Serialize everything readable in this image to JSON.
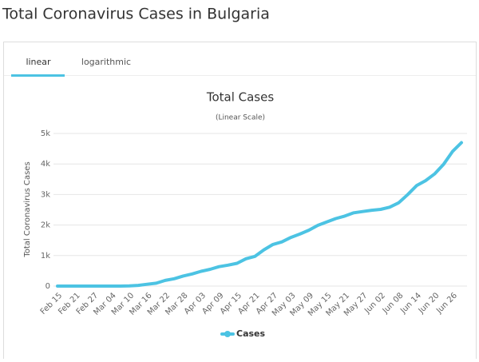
{
  "page_title": "Total Coronavirus Cases in Bulgaria",
  "tabs": [
    "linear",
    "logarithmic"
  ],
  "chart_data": {
    "type": "line",
    "title": "Total Cases",
    "subtitle": "(Linear Scale)",
    "y_label": "Total Coronavirus Cases",
    "categories": [
      "Feb 15",
      null,
      "Feb 21",
      null,
      "Feb 27",
      null,
      "Mar 04",
      null,
      "Mar 10",
      null,
      "Mar 16",
      null,
      "Mar 22",
      null,
      "Mar 28",
      null,
      "Apr 03",
      null,
      "Apr 09",
      null,
      "Apr 15",
      null,
      "Apr 21",
      null,
      "Apr 27",
      null,
      "May 03",
      null,
      "May 09",
      null,
      "May 15",
      null,
      "May 21",
      null,
      "May 27",
      null,
      "Jun 02",
      null,
      "Jun 08",
      null,
      "Jun 14",
      null,
      "Jun 20",
      null,
      "Jun 26",
      null
    ],
    "series": [
      {
        "name": "Cases",
        "color": "#4cc3e3",
        "values": [
          0,
          0,
          0,
          0,
          0,
          0,
          0,
          0,
          6,
          23,
          60,
          94,
          187,
          242,
          331,
          399,
          485,
          549,
          635,
          685,
          747,
          894,
          975,
          1188,
          1363,
          1447,
          1594,
          1704,
          1829,
          1990,
          2100,
          2211,
          2292,
          2400,
          2443,
          2485,
          2513,
          2585,
          2727,
          2993,
          3290,
          3453,
          3674,
          3984,
          4408,
          4700
        ]
      }
    ],
    "ylim": [
      0,
      5000
    ],
    "yticks": [
      0,
      {
        "value": 1000,
        "label": "1k"
      },
      {
        "value": 2000,
        "label": "2k"
      },
      {
        "value": 3000,
        "label": "3k"
      },
      {
        "value": 4000,
        "label": "4k"
      },
      {
        "value": 5000,
        "label": "5k"
      }
    ],
    "grid": true,
    "legend": "bottom"
  }
}
